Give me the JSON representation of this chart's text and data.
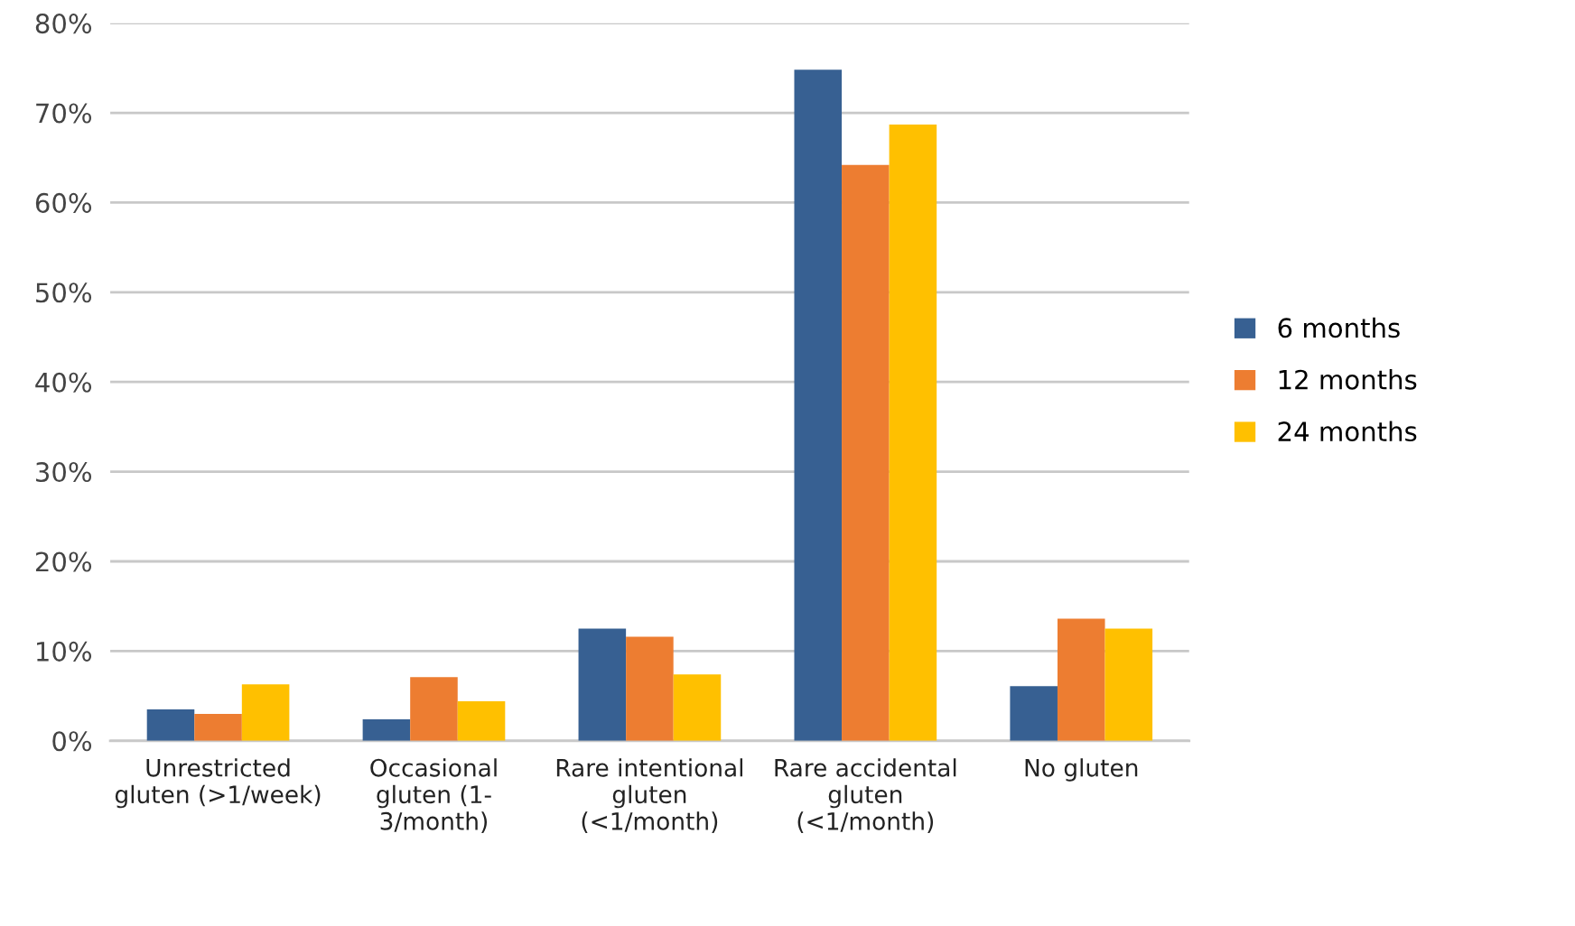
{
  "chart_data": {
    "type": "bar",
    "categories": [
      "Unrestricted\ngluten (>1/week)",
      "Occasional\ngluten (1-\n3/month)",
      "Rare intentional\ngluten\n(<1/month)",
      "Rare accidental\ngluten\n(<1/month)",
      "No gluten"
    ],
    "series": [
      {
        "name": "6 months",
        "color": "#376092",
        "values": [
          3.5,
          2.4,
          12.5,
          74.8,
          6.1
        ]
      },
      {
        "name": "12 months",
        "color": "#ED7D31",
        "values": [
          3.0,
          7.1,
          11.6,
          64.2,
          13.6
        ]
      },
      {
        "name": "24 months",
        "color": "#FFC000",
        "values": [
          6.3,
          4.4,
          7.4,
          68.7,
          12.5
        ]
      }
    ],
    "ylim": [
      0,
      80
    ],
    "yticks": [
      {
        "value": 0,
        "label": "0%"
      },
      {
        "value": 10,
        "label": "10%"
      },
      {
        "value": 20,
        "label": "20%"
      },
      {
        "value": 30,
        "label": "30%"
      },
      {
        "value": 40,
        "label": "40%"
      },
      {
        "value": 50,
        "label": "50%"
      },
      {
        "value": 60,
        "label": "60%"
      },
      {
        "value": 70,
        "label": "70%"
      },
      {
        "value": 80,
        "label": "80%"
      }
    ],
    "grid": "y",
    "legend": "right"
  }
}
